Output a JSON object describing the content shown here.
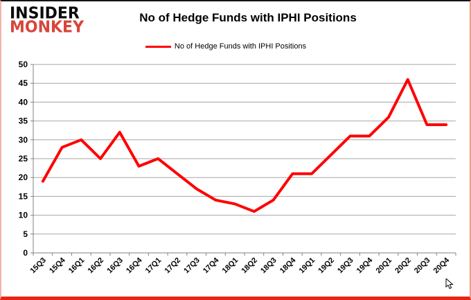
{
  "logo": {
    "line1": "INSIDER",
    "line2": "MONKEY"
  },
  "header": {
    "title": "No of Hedge Funds with IPHI Positions"
  },
  "legend": {
    "label": "No of Hedge Funds with IPHI Positions",
    "line_color": "#FF0000"
  },
  "colors": {
    "line": "#FF0000",
    "grid": "#A6A6A6",
    "axis": "#808080",
    "logo_black": "#0C0C0C",
    "logo_red": "#D8453A",
    "frame_bottom": "#EA2415"
  },
  "chart_data": {
    "type": "line",
    "title": "No of Hedge Funds with IPHI Positions",
    "xlabel": "",
    "ylabel": "",
    "categories": [
      "15Q3",
      "15Q4",
      "16Q1",
      "16Q2",
      "16Q3",
      "16Q4",
      "17Q1",
      "17Q2",
      "17Q3",
      "17Q4",
      "18Q1",
      "18Q2",
      "18Q3",
      "18Q4",
      "19Q1",
      "19Q2",
      "19Q3",
      "19Q4",
      "20Q1",
      "20Q2",
      "20Q3",
      "20Q4"
    ],
    "series": [
      {
        "name": "No of Hedge Funds with IPHI Positions",
        "color": "#FF0000",
        "values": [
          19,
          28,
          30,
          25,
          32,
          23,
          25,
          21,
          17,
          14,
          13,
          11,
          14,
          21,
          21,
          26,
          31,
          31,
          36,
          46,
          34,
          34
        ]
      }
    ],
    "ylim": [
      0,
      50
    ],
    "ytick_step": 5,
    "grid": true,
    "legend_position": "top",
    "markers": false
  }
}
